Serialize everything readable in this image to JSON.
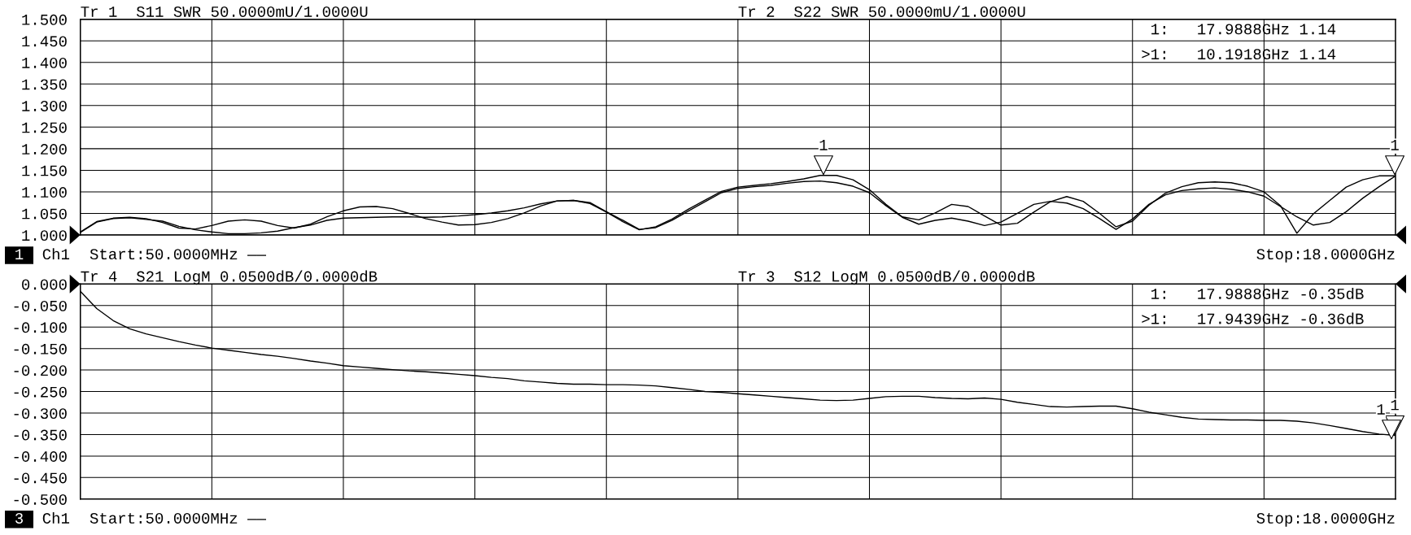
{
  "chart_data": [
    {
      "type": "line",
      "categories": [
        null,
        null,
        null,
        null,
        null,
        null,
        null,
        null,
        null,
        null,
        null,
        null,
        null,
        null,
        null,
        null,
        null,
        null,
        null,
        null,
        null,
        null,
        null,
        null,
        null,
        null,
        null,
        null,
        null,
        null,
        null,
        null,
        null,
        null,
        null,
        null,
        null,
        null,
        null,
        null,
        null,
        null,
        null,
        null,
        null,
        null,
        null,
        null,
        null,
        null,
        null,
        null,
        null,
        null,
        null,
        null,
        null,
        null,
        null,
        null,
        null,
        null,
        null,
        null,
        null,
        null,
        null,
        null,
        null,
        null,
        null,
        null,
        null,
        null,
        null,
        null,
        null,
        null,
        null,
        null,
        null
      ],
      "ylim": [
        1.0,
        1.5
      ],
      "yticks": [
        {
          "value": 1.0,
          "label": "1.000"
        },
        {
          "value": 1.05,
          "label": "1.050"
        },
        {
          "value": 1.1,
          "label": "1.100"
        },
        {
          "value": 1.15,
          "label": "1.150"
        },
        {
          "value": 1.2,
          "label": "1.200"
        },
        {
          "value": 1.25,
          "label": "1.250"
        },
        {
          "value": 1.3,
          "label": "1.300"
        },
        {
          "value": 1.35,
          "label": "1.350"
        },
        {
          "value": 1.4,
          "label": "1.400"
        },
        {
          "value": 1.45,
          "label": "1.450"
        },
        {
          "value": 1.5,
          "label": "1.500"
        }
      ],
      "grid": true,
      "tick_labels": "y",
      "series": [
        {
          "color": "#000000",
          "values": [
            1.007,
            1.031,
            1.039,
            1.041,
            1.038,
            1.029,
            1.016,
            1.014,
            1.022,
            1.032,
            1.035,
            1.032,
            1.022,
            1.016,
            1.025,
            1.042,
            1.056,
            1.065,
            1.066,
            1.061,
            1.05,
            1.038,
            1.03,
            1.023,
            1.024,
            1.029,
            1.038,
            1.051,
            1.067,
            1.079,
            1.08,
            1.073,
            1.053,
            1.031,
            1.012,
            1.019,
            1.037,
            1.06,
            1.081,
            1.101,
            1.111,
            1.115,
            1.119,
            1.124,
            1.13,
            1.138,
            1.138,
            1.128,
            1.105,
            1.071,
            1.042,
            1.035,
            1.051,
            1.071,
            1.066,
            1.044,
            1.023,
            1.027,
            1.053,
            1.077,
            1.089,
            1.078,
            1.05,
            1.019,
            1.032,
            1.069,
            1.097,
            1.112,
            1.121,
            1.123,
            1.121,
            1.113,
            1.1,
            1.068,
            1.004,
            1.049,
            1.08,
            1.111,
            1.128,
            1.137,
            1.137
          ]
        },
        {
          "color": "#000000",
          "values": [
            1.006,
            1.03,
            1.038,
            1.04,
            1.036,
            1.032,
            1.02,
            1.012,
            1.007,
            1.003,
            1.003,
            1.005,
            1.009,
            1.017,
            1.023,
            1.034,
            1.039,
            1.04,
            1.041,
            1.042,
            1.042,
            1.041,
            1.042,
            1.044,
            1.047,
            1.051,
            1.056,
            1.063,
            1.072,
            1.079,
            1.08,
            1.075,
            1.054,
            1.034,
            1.013,
            1.017,
            1.034,
            1.056,
            1.077,
            1.098,
            1.108,
            1.112,
            1.115,
            1.12,
            1.124,
            1.125,
            1.121,
            1.113,
            1.098,
            1.068,
            1.041,
            1.025,
            1.034,
            1.039,
            1.032,
            1.022,
            1.03,
            1.05,
            1.071,
            1.078,
            1.074,
            1.061,
            1.038,
            1.013,
            1.037,
            1.071,
            1.093,
            1.103,
            1.107,
            1.109,
            1.106,
            1.1,
            1.09,
            1.066,
            1.042,
            1.023,
            1.029,
            1.054,
            1.085,
            1.112,
            1.137
          ]
        }
      ],
      "annotations": [
        "Tr 1  S11 SWR 50.0000mU/1.0000U",
        "Tr 2  S22 SWR 50.0000mU/1.0000U",
        "1:   17.9888GHz 1.14",
        ">1:   10.1918GHz 1.14",
        "1",
        "Ch1",
        "Start:50.0000MHz ——",
        "Stop:18.0000GHz",
        {
          "text": "1",
          "y": 1.14
        },
        {
          "text": "1",
          "y": 1.14
        }
      ]
    },
    {
      "type": "line",
      "categories": [
        null,
        null,
        null,
        null,
        null,
        null,
        null,
        null,
        null,
        null,
        null,
        null,
        null,
        null,
        null,
        null,
        null,
        null,
        null,
        null,
        null,
        null,
        null,
        null,
        null,
        null,
        null,
        null,
        null,
        null,
        null,
        null,
        null,
        null,
        null,
        null,
        null,
        null,
        null,
        null,
        null,
        null,
        null,
        null,
        null,
        null,
        null,
        null,
        null,
        null,
        null,
        null,
        null,
        null,
        null,
        null,
        null,
        null,
        null,
        null,
        null,
        null,
        null,
        null,
        null,
        null,
        null,
        null,
        null,
        null,
        null,
        null,
        null,
        null,
        null,
        null,
        null,
        null,
        null,
        null,
        null
      ],
      "ylim": [
        -0.5,
        0.0
      ],
      "yticks": [
        {
          "value": 0.0,
          "label": "0.000"
        },
        {
          "value": -0.05,
          "label": "-0.050"
        },
        {
          "value": -0.1,
          "label": "-0.100"
        },
        {
          "value": -0.15,
          "label": "-0.150"
        },
        {
          "value": -0.2,
          "label": "-0.200"
        },
        {
          "value": -0.25,
          "label": "-0.250"
        },
        {
          "value": -0.3,
          "label": "-0.300"
        },
        {
          "value": -0.35,
          "label": "-0.350"
        },
        {
          "value": -0.4,
          "label": "-0.400"
        },
        {
          "value": -0.45,
          "label": "-0.450"
        },
        {
          "value": -0.5,
          "label": "-0.500"
        }
      ],
      "grid": true,
      "tick_labels": "y",
      "series": [
        {
          "color": "#000000",
          "values": [
            -0.017,
            -0.057,
            -0.085,
            -0.104,
            -0.116,
            -0.125,
            -0.134,
            -0.142,
            -0.149,
            -0.154,
            -0.159,
            -0.164,
            -0.168,
            -0.173,
            -0.179,
            -0.184,
            -0.19,
            -0.193,
            -0.196,
            -0.199,
            -0.202,
            -0.204,
            -0.207,
            -0.21,
            -0.213,
            -0.217,
            -0.22,
            -0.225,
            -0.228,
            -0.231,
            -0.233,
            -0.233,
            -0.234,
            -0.234,
            -0.235,
            -0.237,
            -0.241,
            -0.245,
            -0.25,
            -0.252,
            -0.255,
            -0.258,
            -0.261,
            -0.264,
            -0.267,
            -0.27,
            -0.271,
            -0.27,
            -0.266,
            -0.262,
            -0.261,
            -0.261,
            -0.264,
            -0.266,
            -0.267,
            -0.265,
            -0.268,
            -0.275,
            -0.28,
            -0.285,
            -0.286,
            -0.285,
            -0.284,
            -0.284,
            -0.29,
            -0.298,
            -0.304,
            -0.31,
            -0.314,
            -0.315,
            -0.316,
            -0.316,
            -0.317,
            -0.317,
            -0.319,
            -0.323,
            -0.329,
            -0.336,
            -0.343,
            -0.349,
            -0.352
          ]
        }
      ],
      "annotations": [
        "Tr 4  S21 LogM 0.0500dB/0.0000dB",
        "Tr 3  S12 LogM 0.0500dB/0.0000dB",
        "1:   17.9888GHz -0.35dB",
        ">1:   17.9439GHz -0.36dB",
        "3",
        "Ch1",
        "Start:50.0000MHz ——",
        "Stop:18.0000GHz",
        {
          "text": "1",
          "y": -0.35
        },
        {
          "text": "1",
          "y": -0.36
        }
      ]
    }
  ]
}
